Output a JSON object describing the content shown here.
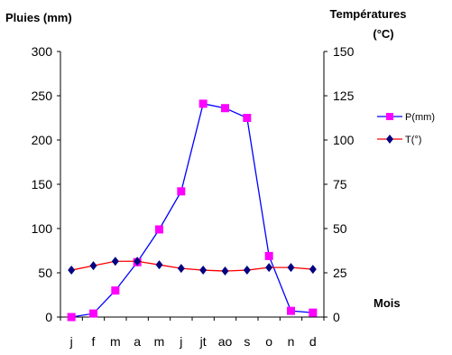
{
  "chart_data": {
    "type": "line",
    "title": "",
    "left_axis_title": "Pluies (mm)",
    "right_axis_title_line1": "Températures",
    "right_axis_title_line2": "(°C)",
    "xlabel": "Mois",
    "categories": [
      "j",
      "f",
      "m",
      "a",
      "m",
      "j",
      "jt",
      "ao",
      "s",
      "o",
      "n",
      "d"
    ],
    "y_left": {
      "min": 0,
      "max": 300,
      "ticks": [
        "0",
        "50",
        "100",
        "150",
        "200",
        "250",
        "300"
      ]
    },
    "y_right": {
      "min": 0,
      "max": 150,
      "ticks": [
        "0",
        "25",
        "50",
        "75",
        "100",
        "125",
        "150"
      ]
    },
    "series": [
      {
        "name": "P(mm)",
        "axis": "left",
        "color": "#0000FF",
        "marker_color": "#FF00FF",
        "marker": "square",
        "values": [
          0,
          4,
          30,
          62,
          99,
          142,
          241,
          236,
          225,
          69,
          7,
          5
        ]
      },
      {
        "name": "T(°)",
        "axis": "right",
        "color": "#FF0000",
        "marker_color": "#000080",
        "marker": "diamond",
        "values": [
          26.5,
          29,
          31.5,
          31.5,
          29.5,
          27.5,
          26.5,
          26,
          26.5,
          28,
          28,
          27
        ]
      }
    ],
    "grid": false,
    "legend_position": "right"
  }
}
